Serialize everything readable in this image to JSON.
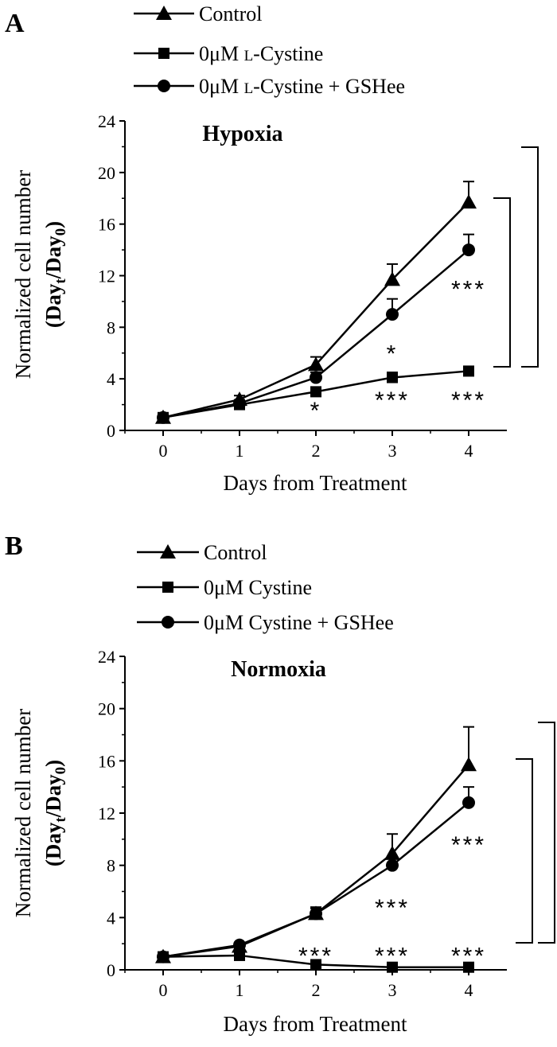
{
  "chart_data": [
    {
      "panel": "A",
      "type": "line",
      "title": "Hypoxia",
      "xlabel": "Days from Treatment",
      "ylabel": "Normalized cell number",
      "ylabel_paren": "(Day",
      "ylabel_sub1": "t",
      "ylabel_mid": "/Day",
      "ylabel_sub2": "0",
      "ylabel_close": ")",
      "x": [
        0,
        1,
        2,
        3,
        4
      ],
      "xlim": [
        -0.5,
        4.5
      ],
      "ylim": [
        0,
        24
      ],
      "xticks": [
        "0",
        "1",
        "2",
        "3",
        "4"
      ],
      "yticks": [
        "0",
        "4",
        "8",
        "12",
        "16",
        "20",
        "24"
      ],
      "series": [
        {
          "name": "Control",
          "marker": "triangle",
          "values": [
            1.0,
            2.4,
            5.1,
            11.7,
            17.7
          ],
          "err": [
            0.2,
            0.3,
            0.6,
            1.2,
            1.6
          ]
        },
        {
          "name_prefix": "0μM ",
          "name_sc": "L",
          "name_suffix": "-Cystine",
          "marker": "square",
          "values": [
            1.0,
            2.0,
            3.0,
            4.1,
            4.6
          ],
          "err": [
            0.1,
            0.2,
            0.2,
            0.4,
            0.2
          ]
        },
        {
          "name_prefix": "0μM ",
          "name_sc": "L",
          "name_suffix": "-Cystine + GSHee",
          "marker": "circle",
          "values": [
            1.0,
            2.1,
            4.1,
            9.0,
            14.0
          ],
          "err": [
            0.1,
            0.2,
            0.4,
            1.2,
            1.2
          ]
        }
      ],
      "annotations": [
        {
          "text": "*",
          "x": 2,
          "y": 1.8
        },
        {
          "text": "***",
          "x": 3,
          "y": 2.6
        },
        {
          "text": "***",
          "x": 4,
          "y": 2.6
        },
        {
          "text": "*",
          "x": 3,
          "y": 6.2
        },
        {
          "text": "***",
          "x": 4,
          "y": 11.2
        }
      ]
    },
    {
      "panel": "B",
      "type": "line",
      "title": "Normoxia",
      "xlabel": "Days from Treatment",
      "ylabel": "Normalized cell number",
      "ylabel_paren": "(Day",
      "ylabel_sub1": "t",
      "ylabel_mid": "/Day",
      "ylabel_sub2": "0",
      "ylabel_close": ")",
      "x": [
        0,
        1,
        2,
        3,
        4
      ],
      "xlim": [
        -0.5,
        4.5
      ],
      "ylim": [
        0,
        24
      ],
      "xticks": [
        "0",
        "1",
        "2",
        "3",
        "4"
      ],
      "yticks": [
        "0",
        "4",
        "8",
        "12",
        "16",
        "20",
        "24"
      ],
      "series": [
        {
          "name": "Control",
          "marker": "triangle",
          "values": [
            1.0,
            1.8,
            4.3,
            8.9,
            15.7
          ],
          "err": [
            0.2,
            0.3,
            0.5,
            1.5,
            2.9
          ]
        },
        {
          "name": "0μM Cystine",
          "marker": "square",
          "values": [
            1.0,
            1.1,
            0.4,
            0.2,
            0.2
          ],
          "err": [
            0.1,
            0.1,
            0.1,
            0.05,
            0.05
          ]
        },
        {
          "name": "0μM Cystine + GSHee",
          "marker": "circle",
          "values": [
            1.0,
            1.9,
            4.3,
            8.0,
            12.8
          ],
          "err": [
            0.1,
            0.2,
            0.4,
            0.6,
            1.2
          ]
        }
      ],
      "annotations": [
        {
          "text": "***",
          "x": 2,
          "y": 1.3
        },
        {
          "text": "***",
          "x": 3,
          "y": 1.3
        },
        {
          "text": "***",
          "x": 4,
          "y": 1.3
        },
        {
          "text": "***",
          "x": 3,
          "y": 5.0
        },
        {
          "text": "***",
          "x": 4,
          "y": 9.8
        }
      ]
    }
  ]
}
